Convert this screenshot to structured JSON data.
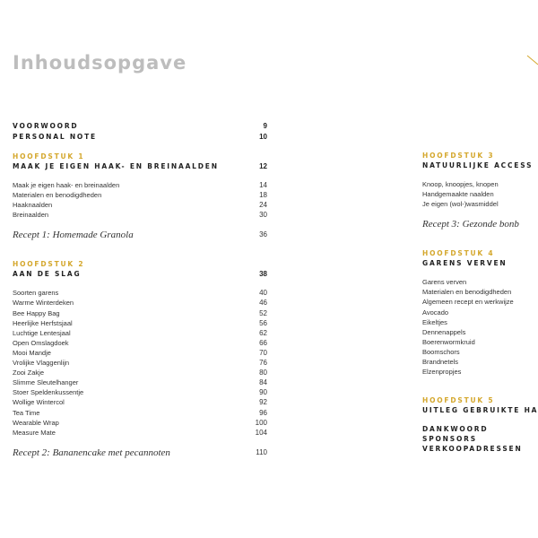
{
  "header": {
    "title": "Inhoudsopgave"
  },
  "left": {
    "front": [
      {
        "label": "VOORWOORD",
        "page": 9
      },
      {
        "label": "PERSONAL NOTE",
        "page": 10
      }
    ],
    "chapters": [
      {
        "number": "HOOFDSTUK 1",
        "title": "MAAK JE EIGEN HAAK- EN BREINAALDEN",
        "page": 12,
        "items": [
          {
            "label": "Maak je eigen haak- en breinaalden",
            "page": 14
          },
          {
            "label": "Materialen en benodigdheden",
            "page": 18
          },
          {
            "label": "Haaknaalden",
            "page": 24
          },
          {
            "label": "Breinaalden",
            "page": 30
          }
        ],
        "recipe": {
          "label": "Recept 1: Homemade Granola",
          "page": 36
        }
      },
      {
        "number": "HOOFDSTUK 2",
        "title": "AAN DE SLAG",
        "page": 38,
        "items": [
          {
            "label": "Soorten garens",
            "page": 40
          },
          {
            "label": "Warme Winterdeken",
            "page": 46
          },
          {
            "label": "Bee Happy Bag",
            "page": 52
          },
          {
            "label": "Heerlijke Herfstsjaal",
            "page": 56
          },
          {
            "label": "Luchtige Lentesjaal",
            "page": 62
          },
          {
            "label": "Open Omslagdoek",
            "page": 66
          },
          {
            "label": "Mooi Mandje",
            "page": 70
          },
          {
            "label": "Vrolijke Vlaggenlijn",
            "page": 76
          },
          {
            "label": "Zooi Zakje",
            "page": 80
          },
          {
            "label": "Slimme Sleutelhanger",
            "page": 84
          },
          {
            "label": "Stoer Speldenkussentje",
            "page": 90
          },
          {
            "label": "Wollige Wintercol",
            "page": 92
          },
          {
            "label": "Tea Time",
            "page": 96
          },
          {
            "label": "Wearable Wrap",
            "page": 100
          },
          {
            "label": "Measure Mate",
            "page": 104
          }
        ],
        "recipe": {
          "label": "Recept 2: Bananencake met pecannoten",
          "page": 110
        }
      }
    ]
  },
  "right": {
    "chapters": [
      {
        "number": "HOOFDSTUK 3",
        "title": "NATUURLIJKE ACCESS",
        "items": [
          {
            "label": "Knoop, knoopjes, knopen"
          },
          {
            "label": "Handgemaakte naalden"
          },
          {
            "label": "Je eigen (wol-)wasmiddel"
          }
        ],
        "recipe": {
          "label": "Recept 3: Gezonde bonb"
        }
      },
      {
        "number": "HOOFDSTUK 4",
        "title": "GARENS VERVEN",
        "items": [
          {
            "label": "Garens verven"
          },
          {
            "label": "Materialen en benodigdheden"
          },
          {
            "label": "Algemeen recept en werkwijze"
          },
          {
            "label": "Avocado"
          },
          {
            "label": "Eikeltjes"
          },
          {
            "label": "Dennenappels"
          },
          {
            "label": "Boerenwormkruid"
          },
          {
            "label": "Boomschors"
          },
          {
            "label": "Brandnetels"
          },
          {
            "label": "Elzenpropjes"
          }
        ]
      },
      {
        "number": "HOOFDSTUK 5",
        "title": "UITLEG GEBRUIKTE HA"
      }
    ],
    "back": [
      "DANKWOORD",
      "SPONSORS",
      "VERKOOPADRESSEN"
    ]
  }
}
